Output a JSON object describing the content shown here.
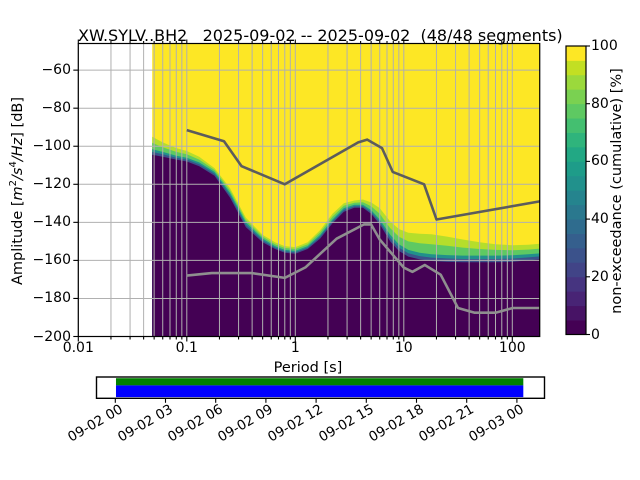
{
  "title": "XW.SYLV..BH2   2025-09-02 -- 2025-09-02  (48/48 segments)",
  "chart_data": {
    "type": "heatmap",
    "title": "XW.SYLV..BH2   2025-09-02 -- 2025-09-02  (48/48 segments)",
    "xlabel": "Period [s]",
    "ylabel": "Amplitude [m2/s4/Hz] [dB]",
    "ylabel_parts": {
      "a": "Amplitude [",
      "b": "m",
      "c": "2",
      "d": "/s",
      "e": "4",
      "f": "/Hz",
      "g": "] [dB]"
    },
    "xscale": "log",
    "xlim": [
      0.01,
      179
    ],
    "ylim": [
      -200,
      -46
    ],
    "xticks": [
      0.01,
      0.1,
      1,
      10,
      100
    ],
    "xtick_labels": [
      "0.01",
      "0.1",
      "1",
      "10",
      "100"
    ],
    "yticks": [
      -60,
      -80,
      -100,
      -120,
      -140,
      -160,
      -180,
      -200
    ],
    "ytick_labels": [
      "−60",
      "−80",
      "−100",
      "−120",
      "−140",
      "−160",
      "−180",
      "−200"
    ],
    "grid": true,
    "grid_color": "#b0b0b0",
    "background_no_data_color": "#ffffff",
    "data_period_range": [
      0.048,
      179
    ],
    "colorbar": {
      "label": "non-exceedance (cumulative) [%]",
      "ticks": [
        0,
        20,
        40,
        60,
        80,
        100
      ],
      "tick_labels": [
        "0",
        "20",
        "40",
        "60",
        "80",
        "100"
      ],
      "colormap": "viridis",
      "steps": 20,
      "band_colors": [
        "#440154",
        "#471365",
        "#482475",
        "#463480",
        "#414487",
        "#3b528b",
        "#355f8d",
        "#2f6c8e",
        "#2a788e",
        "#25848e",
        "#21918c",
        "#1e9c89",
        "#22a884",
        "#2fb47c",
        "#44bf70",
        "#5ec962",
        "#7ad151",
        "#9bd93c",
        "#c2df23",
        "#fde725"
      ]
    },
    "distribution": {
      "comment": "cumulative non-exceedance percentile boundaries, dB vs period(s)",
      "periods": [
        0.048,
        0.06,
        0.08,
        0.1,
        0.13,
        0.18,
        0.25,
        0.35,
        0.5,
        0.65,
        0.8,
        1.0,
        1.3,
        1.7,
        2.2,
        2.8,
        3.5,
        4.2,
        5.0,
        6.0,
        7.5,
        9.0,
        11,
        14,
        18,
        25,
        35,
        50,
        70,
        100,
        140,
        179
      ],
      "p05": [
        -104.5,
        -105.5,
        -107,
        -108,
        -110.5,
        -115.5,
        -127,
        -142.5,
        -150.5,
        -154,
        -156,
        -156.5,
        -154,
        -148.5,
        -140.5,
        -134.5,
        -132.3,
        -132.3,
        -135.5,
        -141,
        -150,
        -155,
        -158,
        -159.5,
        -160.3,
        -160.8,
        -161,
        -161,
        -161,
        -160.8,
        -160,
        -159.5
      ],
      "p50": [
        -101.5,
        -103,
        -105,
        -106,
        -108.5,
        -113.5,
        -124.5,
        -140,
        -148.5,
        -152.5,
        -154.5,
        -155,
        -152.5,
        -146.5,
        -138.5,
        -132.5,
        -130.8,
        -130.8,
        -133.5,
        -138.5,
        -146.5,
        -151.5,
        -154.5,
        -156,
        -156.8,
        -157.2,
        -157.5,
        -157.5,
        -157.5,
        -157.3,
        -156.8,
        -156.3
      ],
      "p95": [
        -95,
        -98,
        -101,
        -102.5,
        -105.5,
        -111.5,
        -122,
        -137.5,
        -146.5,
        -150.5,
        -152.5,
        -153,
        -150.5,
        -144,
        -135.5,
        -130,
        -128.5,
        -128,
        -129.5,
        -132.5,
        -139.5,
        -143.5,
        -145.5,
        -146,
        -146.3,
        -147.5,
        -149,
        -150.5,
        -151.5,
        -152,
        -151.8,
        -151.3
      ],
      "band_colors": {
        "above_p95": "#fde725",
        "p95": "#b5de2b",
        "p75": "#5ec962",
        "p50": "#21918c",
        "p30": "#3b528b",
        "p05": "#440154"
      }
    },
    "noise_models": {
      "color": "#696969",
      "nhnm_color": "#5c5c5c",
      "nlnm_color": "#8f8f8f",
      "nhnm": [
        [
          0.1,
          -91.5
        ],
        [
          0.22,
          -97.4
        ],
        [
          0.32,
          -110.5
        ],
        [
          0.8,
          -120.0
        ],
        [
          3.8,
          -98.0
        ],
        [
          4.6,
          -96.5
        ],
        [
          6.3,
          -101.0
        ],
        [
          7.9,
          -113.5
        ],
        [
          15.4,
          -120.0
        ],
        [
          20.0,
          -138.5
        ],
        [
          179.0,
          -129.0
        ]
      ],
      "nlnm": [
        [
          0.1,
          -168.0
        ],
        [
          0.17,
          -166.7
        ],
        [
          0.4,
          -166.7
        ],
        [
          0.8,
          -169.2
        ],
        [
          1.24,
          -163.7
        ],
        [
          2.4,
          -148.6
        ],
        [
          4.3,
          -141.1
        ],
        [
          5.0,
          -141.1
        ],
        [
          6.0,
          -149.0
        ],
        [
          10.0,
          -163.8
        ],
        [
          12.0,
          -166.0
        ],
        [
          15.6,
          -162.4
        ],
        [
          21.9,
          -167.5
        ],
        [
          31.6,
          -185.0
        ],
        [
          45.0,
          -187.5
        ],
        [
          70.0,
          -187.5
        ],
        [
          101.0,
          -185.0
        ],
        [
          154.0,
          -185.0
        ],
        [
          179.0,
          -185.0
        ]
      ]
    },
    "coverage": {
      "tick_labels": [
        "09-02 00",
        "09-02 03",
        "09-02 06",
        "09-02 09",
        "09-02 12",
        "09-02 15",
        "09-02 18",
        "09-02 21",
        "09-03 00"
      ],
      "psd_segments_color": "#008000",
      "data_color": "#0000ff",
      "frame_color": "#000000",
      "fill_start_frac": 0.0435,
      "fill_end_frac": 0.9527
    }
  }
}
